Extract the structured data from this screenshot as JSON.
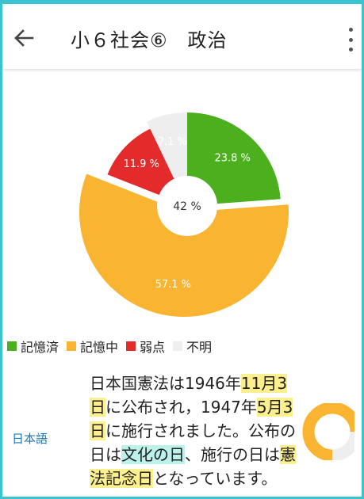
{
  "appbar": {
    "back_icon": "arrow-left-icon",
    "title": "小６社会⑥　政治",
    "more_icon": "more-vert-icon"
  },
  "chart_data": {
    "type": "pie",
    "categories": [
      "記憶済",
      "記憶中",
      "弱点",
      "不明"
    ],
    "values": [
      23.8,
      57.1,
      11.9,
      7.1
    ],
    "labels": [
      "23.8 %",
      "57.1 %",
      "11.9 %",
      "7.1 %"
    ],
    "colors": [
      "#4caf1e",
      "#f9b531",
      "#e32b2b",
      "#eeeeee"
    ],
    "center_label": "42 %",
    "legend_position": "bottom-left"
  },
  "legend": [
    {
      "label": "記憶済",
      "color": "#4caf1e"
    },
    {
      "label": "記憶中",
      "color": "#f9b531"
    },
    {
      "label": "弱点",
      "color": "#e32b2b"
    },
    {
      "label": "不明",
      "color": "#eeeeee"
    }
  ],
  "card": {
    "subject": "日本語",
    "segments": [
      {
        "text": "日本国憲法は1946年",
        "hl": ""
      },
      {
        "text": "11月3日",
        "hl": "yellow"
      },
      {
        "text": "に公布され，1947年",
        "hl": ""
      },
      {
        "text": "5月3日",
        "hl": "yellow"
      },
      {
        "text": "に施行されました。公布の日は",
        "hl": ""
      },
      {
        "text": "文化の日",
        "hl": "cyan"
      },
      {
        "text": "、施行の日は",
        "hl": ""
      },
      {
        "text": "憲法記念日",
        "hl": "yellow"
      },
      {
        "text": "となっています。",
        "hl": ""
      }
    ],
    "mini_progress": {
      "state": "記憶中",
      "fraction": 0.75,
      "colors": [
        "#f9b531",
        "#eeeeee"
      ]
    }
  }
}
